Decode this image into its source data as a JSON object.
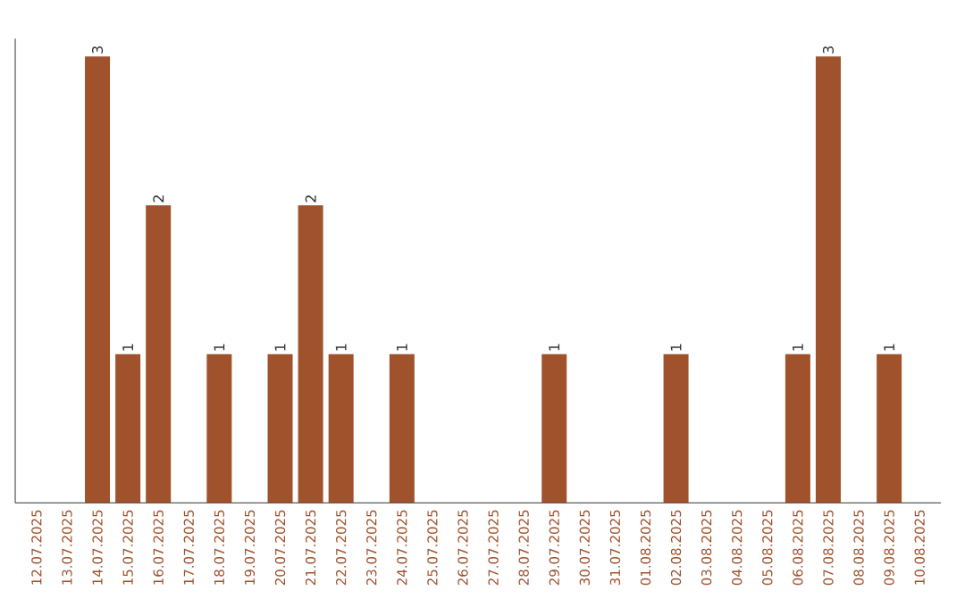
{
  "chart_data": {
    "type": "bar",
    "categories": [
      "12.07.2025",
      "13.07.2025",
      "14.07.2025",
      "15.07.2025",
      "16.07.2025",
      "17.07.2025",
      "18.07.2025",
      "19.07.2025",
      "20.07.2025",
      "21.07.2025",
      "22.07.2025",
      "23.07.2025",
      "24.07.2025",
      "25.07.2025",
      "26.07.2025",
      "27.07.2025",
      "28.07.2025",
      "29.07.2025",
      "30.07.2025",
      "31.07.2025",
      "01.08.2025",
      "02.08.2025",
      "03.08.2025",
      "04.08.2025",
      "05.08.2025",
      "06.08.2025",
      "07.08.2025",
      "08.08.2025",
      "09.08.2025",
      "10.08.2025"
    ],
    "values": [
      0,
      0,
      3,
      1,
      2,
      0,
      1,
      0,
      1,
      2,
      1,
      0,
      1,
      0,
      0,
      0,
      0,
      1,
      0,
      0,
      0,
      1,
      0,
      0,
      0,
      1,
      3,
      0,
      1,
      0
    ],
    "value_labels": [
      null,
      null,
      "3",
      "1",
      "2",
      null,
      "1",
      null,
      "1",
      "2",
      "1",
      null,
      "1",
      null,
      null,
      null,
      null,
      "1",
      null,
      null,
      null,
      "1",
      null,
      null,
      null,
      "1",
      "3",
      null,
      "1",
      null
    ],
    "color": "#a0522d"
  }
}
